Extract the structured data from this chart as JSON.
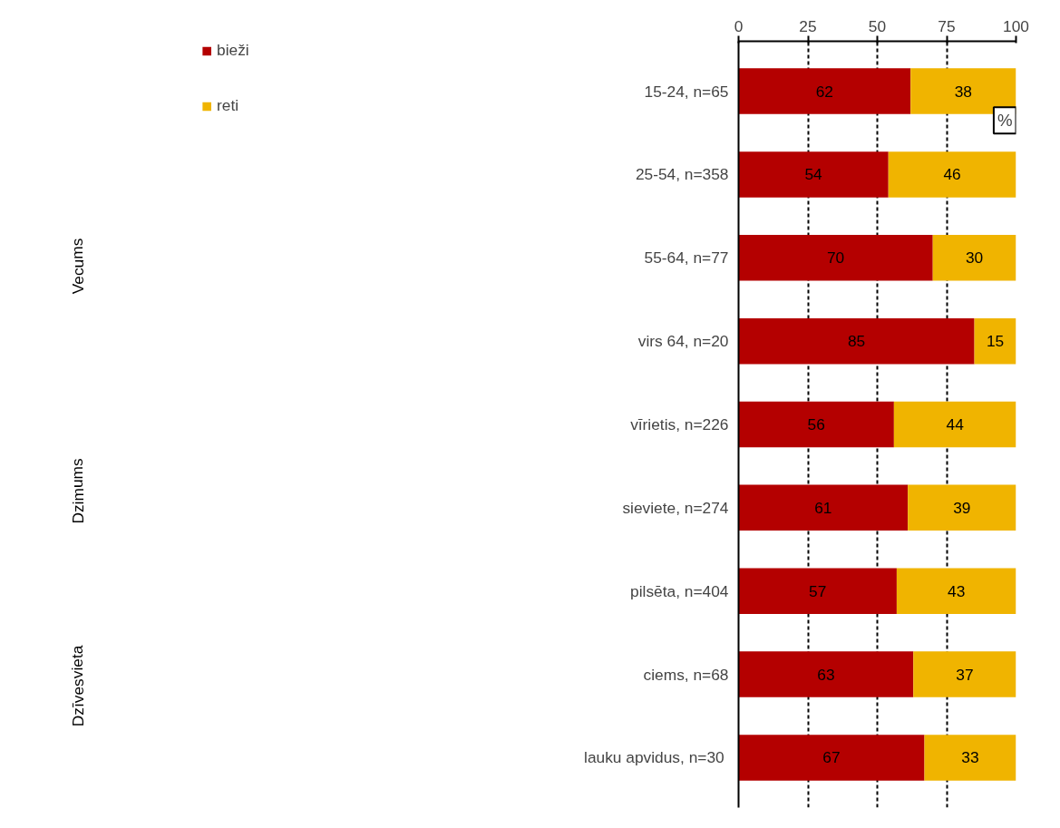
{
  "chart_data": {
    "type": "bar",
    "orientation": "horizontal",
    "stacked": true,
    "categories": [
      "15-24, n=65",
      "25-54, n=358",
      "55-64, n=77",
      "virs 64, n=20",
      "vīrietis, n=226",
      "sieviete, n=274",
      "pilsēta, n=404",
      "ciems, n=68",
      "lauku apvidus,  n=30"
    ],
    "series": [
      {
        "name": "bieži",
        "color": "#b40000",
        "values": [
          62,
          54,
          70,
          85,
          56,
          61,
          57,
          63,
          67
        ]
      },
      {
        "name": "reti",
        "color": "#f0b400",
        "values": [
          38,
          46,
          30,
          15,
          44,
          39,
          43,
          37,
          33
        ]
      }
    ],
    "xlim": [
      0,
      100
    ],
    "xticks": [
      0,
      25,
      50,
      75,
      100
    ],
    "grid": "x",
    "legend": "top left",
    "data_labels": true,
    "annotations": [
      "Vecums",
      "Dzimums",
      "Dzīvesvieta",
      {
        "text": "%",
        "x": 100,
        "y": "15-24, n=65"
      }
    ]
  }
}
